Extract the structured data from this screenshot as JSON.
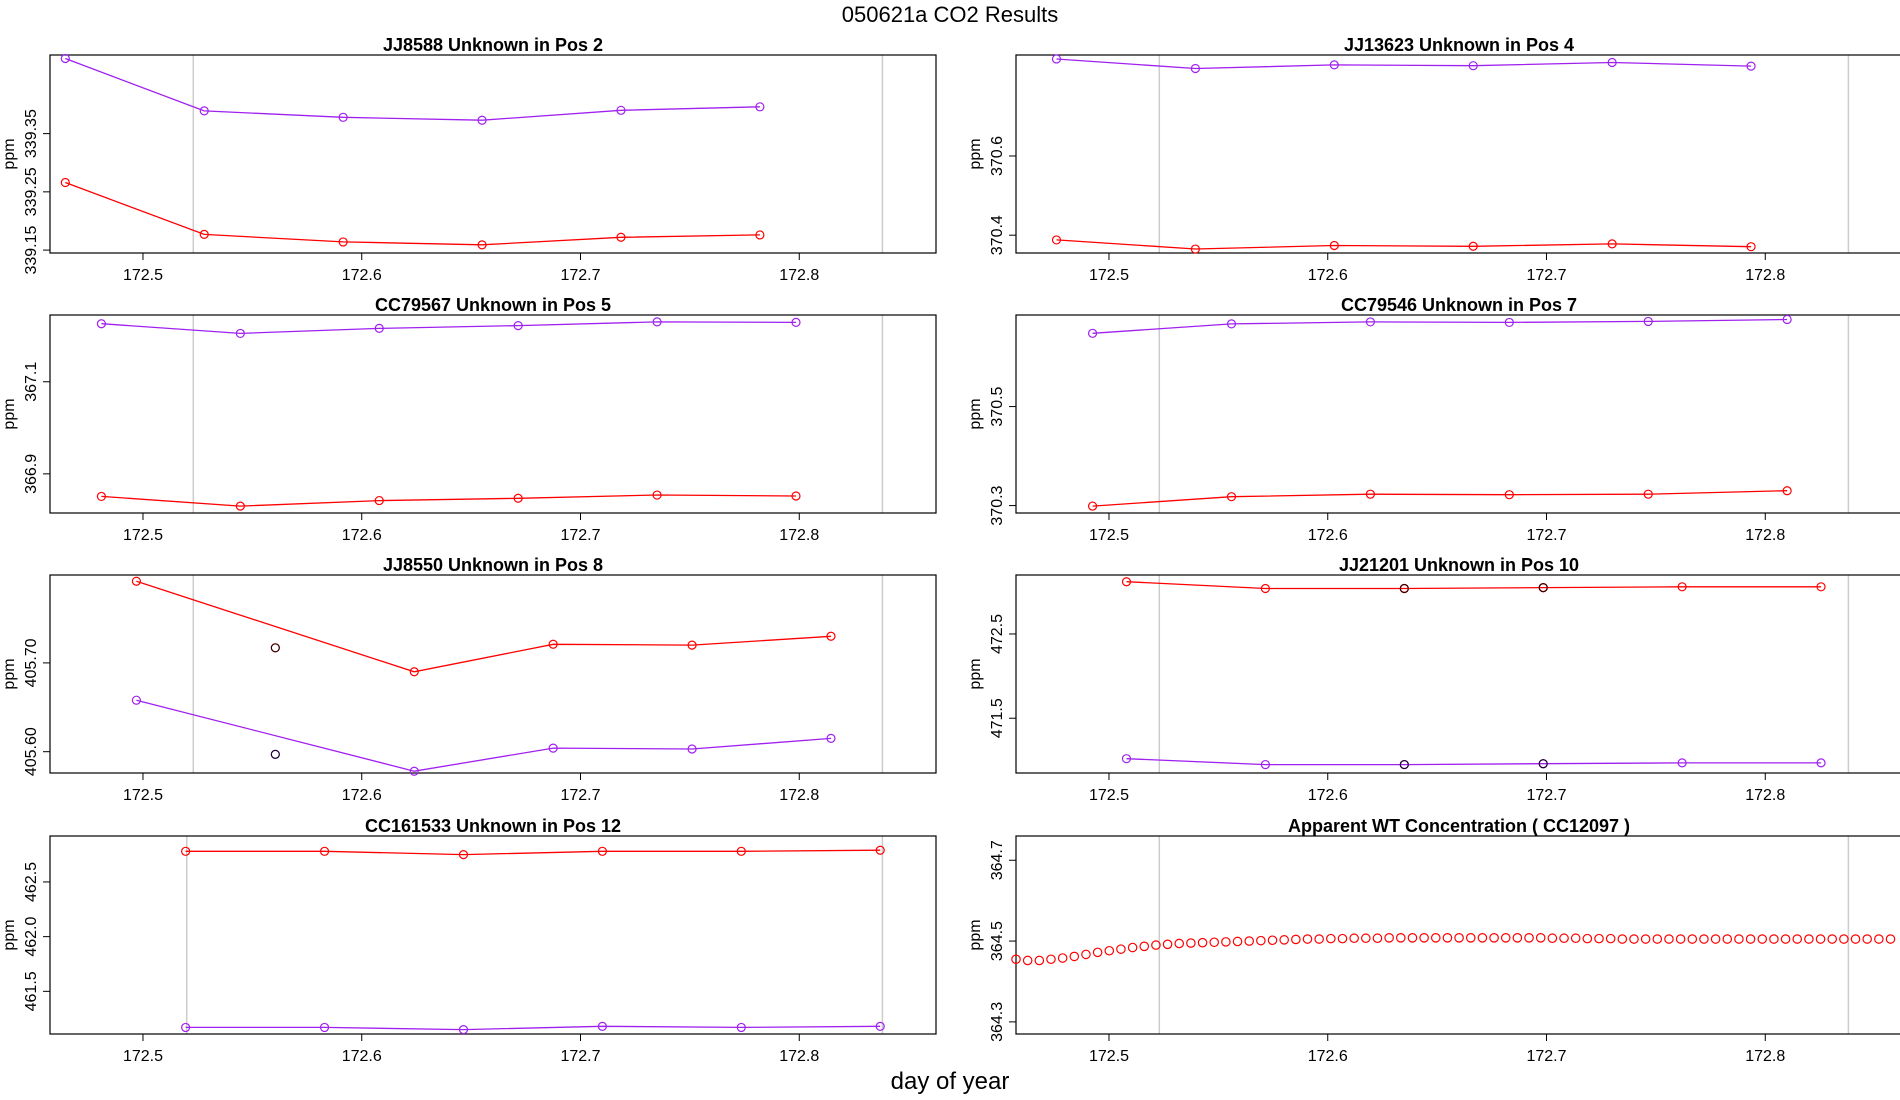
{
  "figure": {
    "title": "050621a  CO2 Results",
    "xlabel": "day of year"
  },
  "colors": {
    "series_red": "#ff0000",
    "series_purple": "#a020f0",
    "outlier": "#000000",
    "vline": "#cccccc"
  },
  "chart_data": [
    {
      "type": "line",
      "title": "JJ8588    Unknown in Pos 2",
      "ylabel": "ppm",
      "xlim": [
        172.4575,
        172.8625
      ],
      "ylim": [
        339.145,
        339.485
      ],
      "xticks": [
        172.5,
        172.6,
        172.7,
        172.8
      ],
      "yticks": [
        339.15,
        339.25,
        339.35
      ],
      "ytick_labels": [
        "339.15",
        "339.25",
        "339.35"
      ],
      "vlines": [
        172.523,
        172.838
      ],
      "series": [
        {
          "color": "red",
          "x": [
            172.4645,
            172.528,
            172.5915,
            172.655,
            172.7185,
            172.782
          ],
          "y": [
            339.266,
            339.177,
            339.164,
            339.159,
            339.172,
            339.176
          ]
        },
        {
          "color": "purple",
          "x": [
            172.4645,
            172.528,
            172.5915,
            172.655,
            172.7185,
            172.782
          ],
          "y": [
            339.479,
            339.389,
            339.378,
            339.373,
            339.39,
            339.396
          ]
        }
      ],
      "outliers": []
    },
    {
      "type": "line",
      "title": "JJ13623    Unknown in Pos 4",
      "ylabel": "ppm",
      "xlim": [
        172.4575,
        172.8625
      ],
      "ylim": [
        370.355,
        370.855
      ],
      "xticks": [
        172.5,
        172.6,
        172.7,
        172.8
      ],
      "yticks": [
        370.4,
        370.6
      ],
      "ytick_labels": [
        "370.4",
        "370.6"
      ],
      "vlines": [
        172.523,
        172.838
      ],
      "series": [
        {
          "color": "red",
          "x": [
            172.476,
            172.5395,
            172.603,
            172.6665,
            172.73,
            172.7935
          ],
          "y": [
            370.388,
            370.365,
            370.374,
            370.372,
            370.378,
            370.371
          ]
        },
        {
          "color": "purple",
          "x": [
            172.476,
            172.5395,
            172.603,
            172.6665,
            172.73,
            172.7935
          ],
          "y": [
            370.845,
            370.821,
            370.83,
            370.828,
            370.836,
            370.827
          ]
        }
      ],
      "outliers": []
    },
    {
      "type": "line",
      "title": "CC79567    Unknown in Pos 5",
      "ylabel": "ppm",
      "xlim": [
        172.4575,
        172.8625
      ],
      "ylim": [
        366.815,
        367.245
      ],
      "xticks": [
        172.5,
        172.6,
        172.7,
        172.8
      ],
      "yticks": [
        366.9,
        367.1
      ],
      "ytick_labels": [
        "366.9",
        "367.1"
      ],
      "vlines": [
        172.523,
        172.838
      ],
      "series": [
        {
          "color": "red",
          "x": [
            172.481,
            172.5445,
            172.608,
            172.6715,
            172.735,
            172.7985
          ],
          "y": [
            366.851,
            366.83,
            366.842,
            366.847,
            366.854,
            366.852
          ]
        },
        {
          "color": "purple",
          "x": [
            172.481,
            172.5445,
            172.608,
            172.6715,
            172.735,
            172.7985
          ],
          "y": [
            367.226,
            367.205,
            367.216,
            367.222,
            367.23,
            367.229
          ]
        }
      ],
      "outliers": []
    },
    {
      "type": "line",
      "title": "CC79546    Unknown in Pos 7",
      "ylabel": "ppm",
      "xlim": [
        172.4575,
        172.8625
      ],
      "ylim": [
        370.285,
        370.685
      ],
      "xticks": [
        172.5,
        172.6,
        172.7,
        172.8
      ],
      "yticks": [
        370.3,
        370.5
      ],
      "ytick_labels": [
        "370.3",
        "370.5"
      ],
      "vlines": [
        172.523,
        172.838
      ],
      "series": [
        {
          "color": "red",
          "x": [
            172.4925,
            172.556,
            172.6195,
            172.683,
            172.7465,
            172.81
          ],
          "y": [
            370.299,
            370.318,
            370.323,
            370.322,
            370.323,
            370.33
          ]
        },
        {
          "color": "purple",
          "x": [
            172.4925,
            172.556,
            172.6195,
            172.683,
            172.7465,
            172.81
          ],
          "y": [
            370.648,
            370.667,
            370.671,
            370.67,
            370.672,
            370.676
          ]
        }
      ],
      "outliers": []
    },
    {
      "type": "line",
      "title": "JJ8550    Unknown in Pos 8",
      "ylabel": "ppm",
      "xlim": [
        172.4575,
        172.8625
      ],
      "ylim": [
        405.576,
        405.799
      ],
      "xticks": [
        172.5,
        172.6,
        172.7,
        172.8
      ],
      "yticks": [
        405.6,
        405.7
      ],
      "ytick_labels": [
        "405.60",
        "405.70"
      ],
      "vlines": [
        172.523,
        172.838
      ],
      "series": [
        {
          "color": "red",
          "x": [
            172.497,
            172.624,
            172.6875,
            172.751,
            172.8145
          ],
          "y": [
            405.792,
            405.69,
            405.721,
            405.72,
            405.73
          ]
        },
        {
          "color": "purple",
          "x": [
            172.497,
            172.624,
            172.6875,
            172.751,
            172.8145
          ],
          "y": [
            405.658,
            405.578,
            405.604,
            405.603,
            405.615
          ]
        }
      ],
      "outliers": [
        {
          "color": "red",
          "x": 172.5605,
          "y": 405.717
        },
        {
          "color": "purple",
          "x": 172.5605,
          "y": 405.597
        }
      ]
    },
    {
      "type": "line",
      "title": "JJ21201    Unknown in Pos 10",
      "ylabel": "ppm",
      "xlim": [
        172.4575,
        172.8625
      ],
      "ylim": [
        470.85,
        473.2
      ],
      "xticks": [
        172.5,
        172.6,
        172.7,
        172.8
      ],
      "yticks": [
        471.5,
        472.5
      ],
      "ytick_labels": [
        "471.5",
        "472.5"
      ],
      "vlines": [
        172.523,
        172.838
      ],
      "series": [
        {
          "color": "red",
          "x": [
            172.508,
            172.5715,
            172.635,
            172.6985,
            172.762,
            172.8255
          ],
          "y": [
            473.12,
            473.04,
            473.04,
            473.05,
            473.06,
            473.06
          ]
        },
        {
          "color": "purple",
          "x": [
            172.508,
            172.5715,
            172.635,
            172.6985,
            172.762,
            172.8255
          ],
          "y": [
            471.02,
            470.95,
            470.95,
            470.96,
            470.97,
            470.97
          ]
        }
      ],
      "outliers": [
        {
          "color": "red",
          "x": 172.635,
          "y": 473.04
        },
        {
          "color": "red",
          "x": 172.6985,
          "y": 473.05
        },
        {
          "color": "purple",
          "x": 172.635,
          "y": 470.95
        },
        {
          "color": "purple",
          "x": 172.6985,
          "y": 470.96
        }
      ]
    },
    {
      "type": "line",
      "title": "CC161533    Unknown in Pos 12",
      "ylabel": "ppm",
      "xlim": [
        172.4575,
        172.8625
      ],
      "ylim": [
        461.11,
        462.92
      ],
      "xticks": [
        172.5,
        172.6,
        172.7,
        172.8
      ],
      "yticks": [
        461.5,
        462.0,
        462.5
      ],
      "ytick_labels": [
        "461.5",
        "462.0",
        "462.5"
      ],
      "vlines": [
        172.52,
        172.838
      ],
      "series": [
        {
          "color": "red",
          "x": [
            172.5195,
            172.583,
            172.6465,
            172.71,
            172.7735,
            172.837
          ],
          "y": [
            462.78,
            462.78,
            462.75,
            462.78,
            462.78,
            462.79
          ]
        },
        {
          "color": "purple",
          "x": [
            172.5195,
            172.583,
            172.6465,
            172.71,
            172.7735,
            172.837
          ],
          "y": [
            461.17,
            461.17,
            461.15,
            461.18,
            461.17,
            461.18
          ]
        }
      ],
      "outliers": []
    },
    {
      "type": "scatter",
      "title": "Apparent WT Concentration ( CC12097 )",
      "ylabel": "ppm",
      "xlim": [
        172.4575,
        172.8625
      ],
      "ylim": [
        364.27,
        364.76
      ],
      "xticks": [
        172.5,
        172.6,
        172.7,
        172.8
      ],
      "yticks": [
        364.3,
        364.5,
        364.7
      ],
      "ytick_labels": [
        "364.3",
        "364.5",
        "364.7"
      ],
      "vlines": [
        172.523,
        172.838
      ],
      "x_start": 172.4575,
      "x_step": 0.00533,
      "y": [
        364.455,
        364.452,
        364.452,
        364.455,
        364.458,
        364.462,
        364.467,
        364.472,
        364.476,
        364.48,
        364.484,
        364.487,
        364.49,
        364.492,
        364.494,
        364.495,
        364.496,
        364.497,
        364.498,
        364.499,
        364.5,
        364.501,
        364.502,
        364.503,
        364.504,
        364.505,
        364.505,
        364.506,
        364.506,
        364.507,
        364.507,
        364.507,
        364.508,
        364.508,
        364.508,
        364.508,
        364.508,
        364.508,
        364.508,
        364.508,
        364.508,
        364.508,
        364.508,
        364.508,
        364.508,
        364.508,
        364.507,
        364.507,
        364.507,
        364.506,
        364.506,
        364.506,
        364.505,
        364.505,
        364.505,
        364.505,
        364.505,
        364.505,
        364.505,
        364.505,
        364.505,
        364.505,
        364.505,
        364.505,
        364.505,
        364.505,
        364.505,
        364.505,
        364.505,
        364.505,
        364.505,
        364.505,
        364.505,
        364.505,
        364.505,
        364.505
      ],
      "series_color": "red"
    }
  ]
}
